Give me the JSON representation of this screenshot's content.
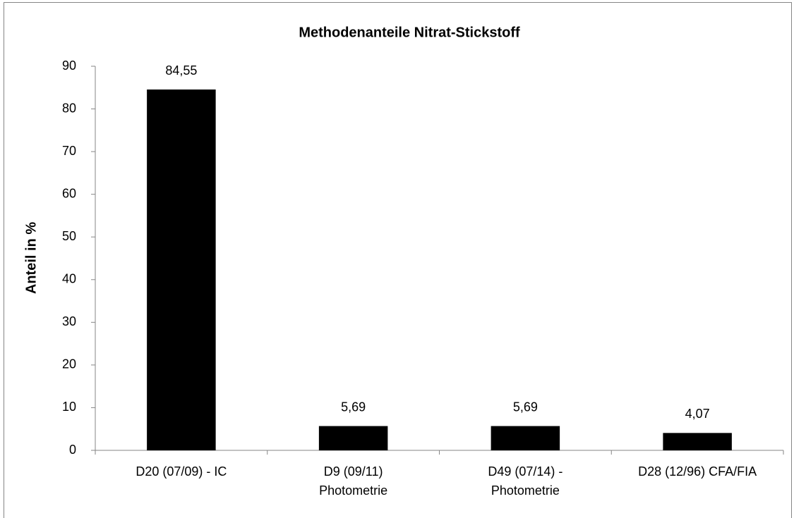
{
  "chart_data": {
    "type": "bar",
    "title": "Methodenanteile Nitrat-Stickstoff",
    "y_label": "Anteil in %",
    "categories": [
      "D20 (07/09) - IC",
      "D9 (09/11)\nPhotometrie",
      "D49 (07/14) -\nPhotometrie",
      "D28 (12/96) CFA/FIA"
    ],
    "values": [
      84.55,
      5.69,
      5.69,
      4.07
    ],
    "value_labels": [
      "84,55",
      "5,69",
      "5,69",
      "4,07"
    ],
    "color": "#000000",
    "ylim": [
      0,
      90
    ],
    "yticks": [
      0,
      10,
      20,
      30,
      40,
      50,
      60,
      70,
      80,
      90
    ],
    "grid": false
  }
}
